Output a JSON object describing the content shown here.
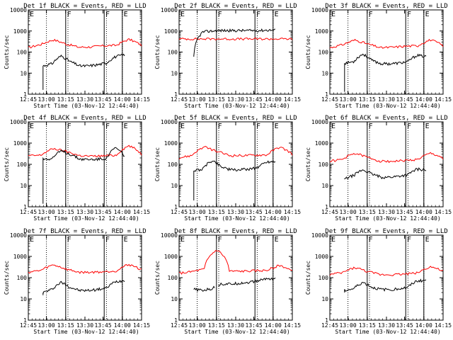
{
  "chart_data": [
    {
      "type": "line",
      "title": "Det 1f BLACK = Events, RED = LLD",
      "red": [
        160,
        230,
        380,
        240,
        170,
        175,
        200,
        210,
        400,
        210
      ],
      "black": [
        22,
        28,
        65,
        35,
        22,
        22,
        25,
        30,
        60,
        75
      ],
      "black_start": 1.6,
      "gaps": []
    },
    {
      "type": "line",
      "title": "Det 2f BLACK = Events, RED = LLD",
      "red": [
        420,
        420,
        420,
        420,
        420,
        420,
        420,
        420,
        420,
        420
      ],
      "black": [
        60,
        900,
        1000,
        1050,
        1050,
        1050,
        1050,
        1050,
        1100,
        1100
      ],
      "black_start": 60,
      "gaps": []
    },
    {
      "type": "line",
      "title": "Det 3f BLACK = Events, RED = LLD",
      "red": [
        160,
        220,
        370,
        240,
        160,
        170,
        190,
        200,
        380,
        200
      ],
      "black": [
        30,
        35,
        80,
        40,
        28,
        28,
        30,
        35,
        70,
        60
      ],
      "black_start": 1.3,
      "gaps": []
    },
    {
      "type": "line",
      "title": "Det 4f BLACK = Events, RED = LLD",
      "red": [
        250,
        270,
        550,
        400,
        260,
        240,
        250,
        270,
        750,
        300
      ],
      "black": [
        180,
        190,
        420,
        300,
        180,
        170,
        175,
        190,
        600,
        240
      ],
      "black_start": 1.4,
      "gaps": []
    },
    {
      "type": "line",
      "title": "Det 5f BLACK = Events, RED = LLD",
      "red": [
        200,
        260,
        650,
        400,
        260,
        260,
        270,
        280,
        650,
        300
      ],
      "black": [
        50,
        60,
        150,
        80,
        55,
        55,
        60,
        70,
        130,
        140
      ],
      "black_start": 2,
      "gaps": []
    },
    {
      "type": "line",
      "title": "Det 6f BLACK = Events, RED = LLD",
      "red": [
        140,
        170,
        330,
        210,
        140,
        140,
        150,
        170,
        330,
        200
      ],
      "black": [
        20,
        30,
        55,
        35,
        25,
        25,
        28,
        32,
        60,
        55
      ],
      "black_start": 20,
      "gaps": []
    },
    {
      "type": "line",
      "title": "Det 7f BLACK = Events, RED = LLD",
      "red": [
        180,
        220,
        400,
        250,
        180,
        180,
        190,
        210,
        420,
        230
      ],
      "black": [
        20,
        28,
        60,
        35,
        25,
        25,
        28,
        32,
        65,
        75
      ],
      "black_start": 15,
      "gaps": []
    },
    {
      "type": "line",
      "title": "Det 8f BLACK = Events, RED = LLD",
      "red": [
        160,
        190,
        250,
        2000,
        200,
        200,
        210,
        220,
        380,
        200
      ],
      "black": [
        28,
        25,
        30,
        50,
        50,
        55,
        60,
        70,
        90,
        90
      ],
      "black_start": 28,
      "gaps": [
        [
          0.315,
          0.345
        ]
      ]
    },
    {
      "type": "line",
      "title": "Det 9f BLACK = Events, RED = LLD",
      "red": [
        140,
        170,
        300,
        190,
        140,
        140,
        150,
        170,
        330,
        200
      ],
      "black": [
        25,
        30,
        60,
        35,
        28,
        28,
        30,
        35,
        70,
        75
      ],
      "black_start": 20,
      "gaps": []
    }
  ],
  "shared": {
    "ylabel": "Counts/sec",
    "xlabel": "Start Time (03-Nov-12 12:44:40)",
    "yticks": [
      "1",
      "10",
      "100",
      "1000",
      "10000"
    ],
    "xticks": [
      "12:45",
      "13:00",
      "13:15",
      "13:30",
      "13:45",
      "14:00",
      "14:15"
    ],
    "markers": [
      "F",
      "F",
      "E"
    ],
    "colors": {
      "events": "#000000",
      "lld": "#ff0000",
      "axes": "#000000"
    }
  }
}
